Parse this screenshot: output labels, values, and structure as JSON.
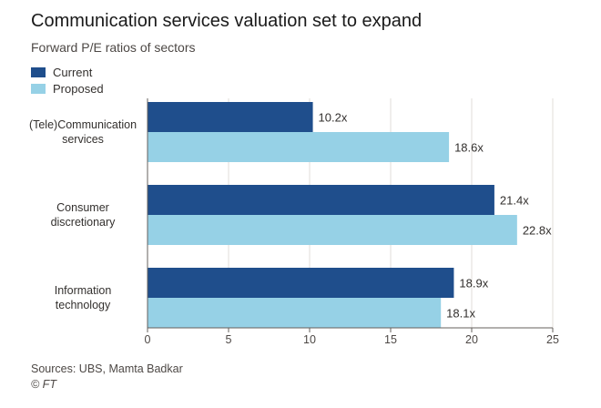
{
  "header": {
    "title": "Communication services valuation set to expand",
    "subtitle": "Forward P/E ratios of sectors"
  },
  "legend": [
    {
      "label": "Current",
      "color": "#1f4e8c"
    },
    {
      "label": "Proposed",
      "color": "#96d1e6"
    }
  ],
  "chart_data": {
    "type": "bar",
    "orientation": "horizontal",
    "title": "Communication services valuation set to expand",
    "subtitle": "Forward P/E ratios of sectors",
    "categories": [
      [
        "(Tele)Communication",
        "services"
      ],
      [
        "Consumer",
        "discretionary"
      ],
      [
        "Information",
        "technology"
      ]
    ],
    "series": [
      {
        "name": "Current",
        "color": "#1f4e8c",
        "values": [
          10.2,
          21.4,
          18.9
        ],
        "labels": [
          "10.2x",
          "21.4x",
          "18.9x"
        ]
      },
      {
        "name": "Proposed",
        "color": "#96d1e6",
        "values": [
          18.6,
          22.8,
          18.1
        ],
        "labels": [
          "18.6x",
          "22.8x",
          "18.1x"
        ]
      }
    ],
    "xlim": [
      0,
      25
    ],
    "xticks": [
      0,
      5,
      10,
      15,
      20,
      25
    ],
    "xlabel": "",
    "ylabel": "",
    "grid": true,
    "legend_position": "top-left"
  },
  "footer": {
    "source": "Sources: UBS, Mamta Badkar",
    "credit": "© FT"
  }
}
